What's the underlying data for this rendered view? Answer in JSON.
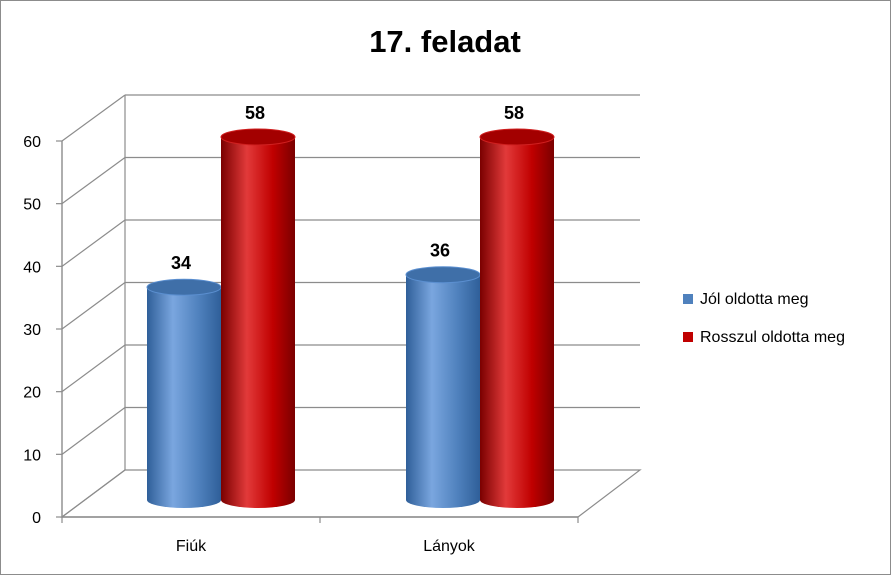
{
  "chart_data": {
    "type": "bar",
    "title": "17. feladat",
    "categories": [
      "Fiúk",
      "Lányok"
    ],
    "series": [
      {
        "name": "Jól oldotta meg",
        "values": [
          34,
          36
        ],
        "color": "#4f81bd"
      },
      {
        "name": "Rosszul oldotta meg",
        "values": [
          58,
          58
        ],
        "color": "#c00000"
      }
    ],
    "ylim": [
      0,
      60
    ],
    "yticks": [
      0,
      10,
      20,
      30,
      40,
      50,
      60
    ],
    "grid": true,
    "legend": "right",
    "style": "3d-cylinder"
  }
}
